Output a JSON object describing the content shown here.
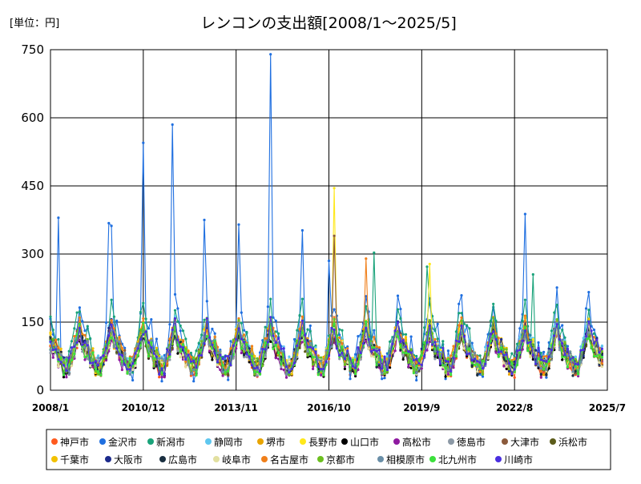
{
  "unit_label": "[単位：円]",
  "chart_data": {
    "type": "line",
    "title": "レンコンの支出額[2008/1～2025/5]",
    "xlabel": "",
    "ylabel": "",
    "x_start": "2008-01",
    "x_end": "2025-05",
    "xlim": [
      "2008-01",
      "2025-07"
    ],
    "ylim": [
      0,
      750
    ],
    "yticks": [
      0,
      150,
      300,
      450,
      600,
      750
    ],
    "xtick_labels": [
      "2008/1",
      "2010/12",
      "2013/11",
      "2016/10",
      "2019/9",
      "2022/8",
      "2025/7"
    ],
    "grid": "x-and-y",
    "legend_position": "bottom",
    "series": [
      {
        "name": "神戸市",
        "color": "#ff5a1f",
        "base": 85,
        "amp": 45,
        "seed": 1
      },
      {
        "name": "金沢市",
        "color": "#1f6fe0",
        "base": 115,
        "amp": 75,
        "seed": 2,
        "spikes": [
          [
            "2008-04",
            380
          ],
          [
            "2009-11",
            368
          ],
          [
            "2009-12",
            362
          ],
          [
            "2010-12",
            545
          ],
          [
            "2011-11",
            585
          ],
          [
            "2012-11",
            375
          ],
          [
            "2013-12",
            365
          ],
          [
            "2014-12",
            740
          ],
          [
            "2015-12",
            352
          ],
          [
            "2016-10",
            285
          ],
          [
            "2022-12",
            388
          ]
        ]
      },
      {
        "name": "新潟市",
        "color": "#1aa37a",
        "base": 110,
        "amp": 60,
        "seed": 3,
        "spikes": [
          [
            "2018-03",
            303
          ],
          [
            "2019-11",
            272
          ],
          [
            "2023-03",
            255
          ]
        ]
      },
      {
        "name": "静岡市",
        "color": "#5fc7ef",
        "base": 95,
        "amp": 45,
        "seed": 4
      },
      {
        "name": "堺市",
        "color": "#e8a400",
        "base": 90,
        "amp": 45,
        "seed": 5
      },
      {
        "name": "長野市",
        "color": "#ffe81a",
        "base": 88,
        "amp": 45,
        "seed": 6,
        "spikes": [
          [
            "2016-12",
            445
          ],
          [
            "2019-12",
            278
          ]
        ]
      },
      {
        "name": "山口市",
        "color": "#000000",
        "base": 80,
        "amp": 40,
        "seed": 7
      },
      {
        "name": "高松市",
        "color": "#8e1aa0",
        "base": 78,
        "amp": 40,
        "seed": 8
      },
      {
        "name": "徳島市",
        "color": "#8c99a6",
        "base": 82,
        "amp": 40,
        "seed": 9
      },
      {
        "name": "大津市",
        "color": "#8b5a3c",
        "base": 88,
        "amp": 42,
        "seed": 10,
        "spikes": [
          [
            "2016-12",
            340
          ]
        ]
      },
      {
        "name": "浜松市",
        "color": "#5c5c1a",
        "base": 85,
        "amp": 40,
        "seed": 11
      },
      {
        "name": "千葉市",
        "color": "#f2c100",
        "base": 92,
        "amp": 45,
        "seed": 12
      },
      {
        "name": "大阪市",
        "color": "#1c2a8c",
        "base": 90,
        "amp": 45,
        "seed": 13
      },
      {
        "name": "広島市",
        "color": "#1a2f40",
        "base": 86,
        "amp": 42,
        "seed": 14
      },
      {
        "name": "岐阜市",
        "color": "#e2e0a0",
        "base": 84,
        "amp": 40,
        "seed": 15
      },
      {
        "name": "名古屋市",
        "color": "#f07f1a",
        "base": 95,
        "amp": 48,
        "seed": 16,
        "spikes": [
          [
            "2017-12",
            290
          ]
        ]
      },
      {
        "name": "京都市",
        "color": "#6cbf1f",
        "base": 90,
        "amp": 45,
        "seed": 17
      },
      {
        "name": "相模原市",
        "color": "#6a8fa8",
        "base": 88,
        "amp": 42,
        "seed": 18
      },
      {
        "name": "北九州市",
        "color": "#3be03b",
        "base": 86,
        "amp": 42,
        "seed": 19
      },
      {
        "name": "川崎市",
        "color": "#4a2fe0",
        "base": 92,
        "amp": 45,
        "seed": 20
      }
    ]
  }
}
